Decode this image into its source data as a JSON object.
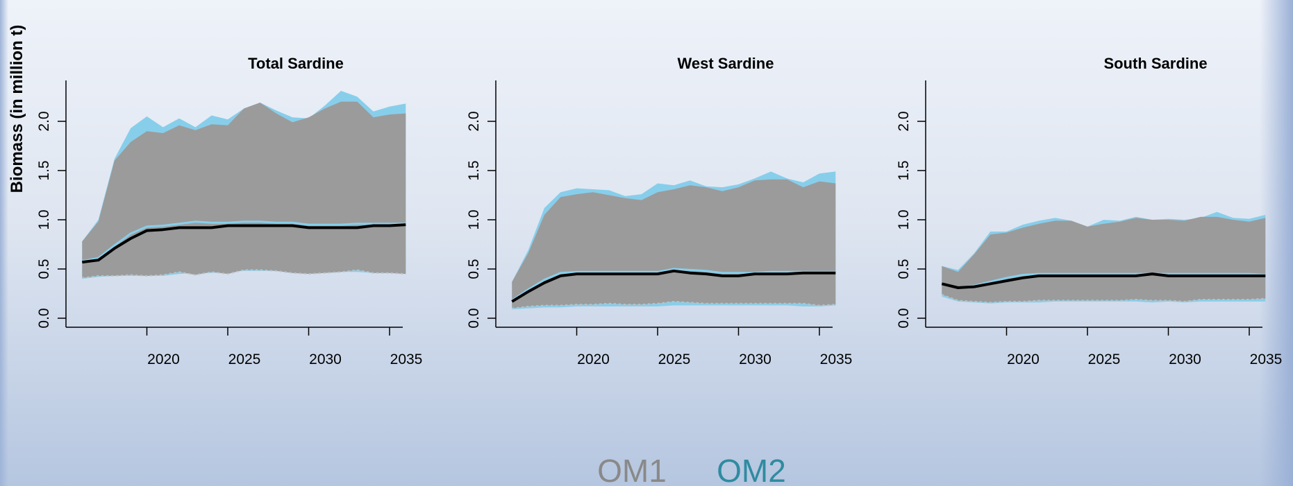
{
  "chart_data": {
    "type": "area",
    "ylabel": "Biomass (in million t)",
    "x_ticks": [
      2020,
      2025,
      2030,
      2035
    ],
    "y_ticks": [
      "0.0",
      "0.5",
      "1.0",
      "1.5",
      "2.0"
    ],
    "ylim": [
      0,
      2.3
    ],
    "xlim": [
      2015,
      2036
    ],
    "legend": {
      "placement": "bottom-center",
      "entries": [
        {
          "label": "OM1",
          "color": "#898989"
        },
        {
          "label": "OM2",
          "color": "#2f8ba0"
        }
      ]
    },
    "style": {
      "om1_band_color": "#9b9b9b",
      "om2_band_color": "#87ceeb",
      "median_color": "#000000",
      "lower_dotted_color": "#b9c3c7"
    },
    "panels": [
      {
        "title": "Total Sardine",
        "x": [
          2016,
          2017,
          2018,
          2019,
          2020,
          2021,
          2022,
          2023,
          2024,
          2025,
          2026,
          2027,
          2028,
          2029,
          2030,
          2031,
          2032,
          2033,
          2034,
          2035,
          2036
        ],
        "series": [
          {
            "name": "OM2 upper",
            "values": [
              0.78,
              1.0,
              1.62,
              1.93,
              2.05,
              1.94,
              2.03,
              1.94,
              2.06,
              2.02,
              2.13,
              2.19,
              2.11,
              2.04,
              2.03,
              2.16,
              2.31,
              2.25,
              2.1,
              2.15,
              2.18
            ]
          },
          {
            "name": "OM1 upper",
            "values": [
              0.78,
              0.98,
              1.6,
              1.79,
              1.9,
              1.88,
              1.96,
              1.91,
              1.97,
              1.96,
              2.13,
              2.19,
              2.08,
              1.99,
              2.04,
              2.13,
              2.2,
              2.2,
              2.04,
              2.07,
              2.08
            ]
          },
          {
            "name": "OM2 median",
            "values": [
              0.58,
              0.61,
              0.74,
              0.86,
              0.93,
              0.94,
              0.96,
              0.98,
              0.97,
              0.97,
              0.98,
              0.98,
              0.97,
              0.97,
              0.95,
              0.95,
              0.95,
              0.96,
              0.96,
              0.96,
              0.96
            ]
          },
          {
            "name": "OM1 median",
            "values": [
              0.57,
              0.59,
              0.71,
              0.81,
              0.89,
              0.9,
              0.92,
              0.92,
              0.92,
              0.94,
              0.94,
              0.94,
              0.94,
              0.94,
              0.92,
              0.92,
              0.92,
              0.92,
              0.94,
              0.94,
              0.95
            ]
          },
          {
            "name": "OM2 lower",
            "values": [
              0.4,
              0.42,
              0.43,
              0.43,
              0.43,
              0.43,
              0.45,
              0.46,
              0.46,
              0.47,
              0.48,
              0.48,
              0.48,
              0.46,
              0.46,
              0.46,
              0.47,
              0.47,
              0.46,
              0.46,
              0.45
            ]
          },
          {
            "name": "OM1 lower dotted",
            "values": [
              0.41,
              0.43,
              0.43,
              0.44,
              0.43,
              0.44,
              0.47,
              0.44,
              0.47,
              0.45,
              0.49,
              0.49,
              0.48,
              0.46,
              0.45,
              0.46,
              0.47,
              0.49,
              0.46,
              0.46,
              0.45
            ]
          }
        ]
      },
      {
        "title": "West Sardine",
        "x": [
          2016,
          2017,
          2018,
          2019,
          2020,
          2021,
          2022,
          2023,
          2024,
          2025,
          2026,
          2027,
          2028,
          2029,
          2030,
          2031,
          2032,
          2033,
          2034,
          2035,
          2036
        ],
        "series": [
          {
            "name": "OM2 upper",
            "values": [
              0.37,
              0.69,
              1.12,
              1.28,
              1.32,
              1.31,
              1.3,
              1.24,
              1.26,
              1.37,
              1.35,
              1.4,
              1.34,
              1.33,
              1.36,
              1.42,
              1.49,
              1.42,
              1.38,
              1.47,
              1.49
            ]
          },
          {
            "name": "OM1 upper",
            "values": [
              0.37,
              0.66,
              1.05,
              1.23,
              1.26,
              1.28,
              1.25,
              1.22,
              1.2,
              1.28,
              1.31,
              1.35,
              1.33,
              1.29,
              1.33,
              1.4,
              1.41,
              1.41,
              1.33,
              1.39,
              1.37
            ]
          },
          {
            "name": "OM2 median",
            "values": [
              0.18,
              0.29,
              0.39,
              0.46,
              0.47,
              0.47,
              0.47,
              0.47,
              0.47,
              0.47,
              0.5,
              0.49,
              0.48,
              0.46,
              0.46,
              0.46,
              0.47,
              0.47,
              0.47,
              0.47,
              0.47
            ]
          },
          {
            "name": "OM1 median",
            "values": [
              0.17,
              0.27,
              0.36,
              0.43,
              0.45,
              0.45,
              0.45,
              0.45,
              0.45,
              0.45,
              0.48,
              0.46,
              0.45,
              0.43,
              0.43,
              0.45,
              0.45,
              0.45,
              0.46,
              0.46,
              0.46
            ]
          },
          {
            "name": "OM2 lower",
            "values": [
              0.09,
              0.1,
              0.11,
              0.11,
              0.12,
              0.12,
              0.12,
              0.12,
              0.12,
              0.12,
              0.13,
              0.13,
              0.13,
              0.13,
              0.13,
              0.13,
              0.13,
              0.13,
              0.12,
              0.12,
              0.13
            ]
          },
          {
            "name": "OM1 lower dotted",
            "values": [
              0.1,
              0.12,
              0.13,
              0.13,
              0.14,
              0.14,
              0.15,
              0.14,
              0.14,
              0.15,
              0.17,
              0.16,
              0.15,
              0.15,
              0.15,
              0.15,
              0.15,
              0.15,
              0.15,
              0.13,
              0.14
            ]
          }
        ]
      },
      {
        "title": "South Sardine",
        "x": [
          2016,
          2017,
          2018,
          2019,
          2020,
          2021,
          2022,
          2023,
          2024,
          2025,
          2026,
          2027,
          2028,
          2029,
          2030,
          2031,
          2032,
          2033,
          2034,
          2035,
          2036
        ],
        "series": [
          {
            "name": "OM2 upper",
            "values": [
              0.53,
              0.49,
              0.66,
              0.88,
              0.88,
              0.95,
              0.99,
              1.02,
              0.99,
              0.93,
              1.0,
              0.99,
              1.03,
              1.0,
              1.01,
              1.0,
              1.02,
              1.08,
              1.02,
              1.01,
              1.05
            ]
          },
          {
            "name": "OM1 upper",
            "values": [
              0.53,
              0.47,
              0.65,
              0.85,
              0.87,
              0.92,
              0.96,
              0.99,
              0.99,
              0.93,
              0.96,
              0.98,
              1.02,
              1.0,
              1.0,
              0.99,
              1.03,
              1.03,
              1.0,
              0.98,
              1.02
            ]
          },
          {
            "name": "OM2 median",
            "values": [
              0.35,
              0.31,
              0.33,
              0.37,
              0.41,
              0.44,
              0.45,
              0.45,
              0.45,
              0.45,
              0.45,
              0.45,
              0.45,
              0.45,
              0.45,
              0.45,
              0.45,
              0.45,
              0.45,
              0.45,
              0.44
            ]
          },
          {
            "name": "OM1 median",
            "values": [
              0.35,
              0.31,
              0.32,
              0.35,
              0.38,
              0.41,
              0.43,
              0.43,
              0.43,
              0.43,
              0.43,
              0.43,
              0.43,
              0.45,
              0.43,
              0.43,
              0.43,
              0.43,
              0.43,
              0.43,
              0.43
            ]
          },
          {
            "name": "OM2 lower",
            "values": [
              0.22,
              0.17,
              0.16,
              0.15,
              0.16,
              0.16,
              0.16,
              0.17,
              0.17,
              0.17,
              0.17,
              0.17,
              0.17,
              0.16,
              0.17,
              0.16,
              0.17,
              0.17,
              0.17,
              0.17,
              0.17
            ]
          },
          {
            "name": "OM1 lower dotted",
            "values": [
              0.24,
              0.18,
              0.17,
              0.16,
              0.17,
              0.17,
              0.18,
              0.18,
              0.18,
              0.18,
              0.18,
              0.18,
              0.19,
              0.18,
              0.18,
              0.17,
              0.19,
              0.19,
              0.19,
              0.19,
              0.2
            ]
          }
        ]
      }
    ]
  }
}
